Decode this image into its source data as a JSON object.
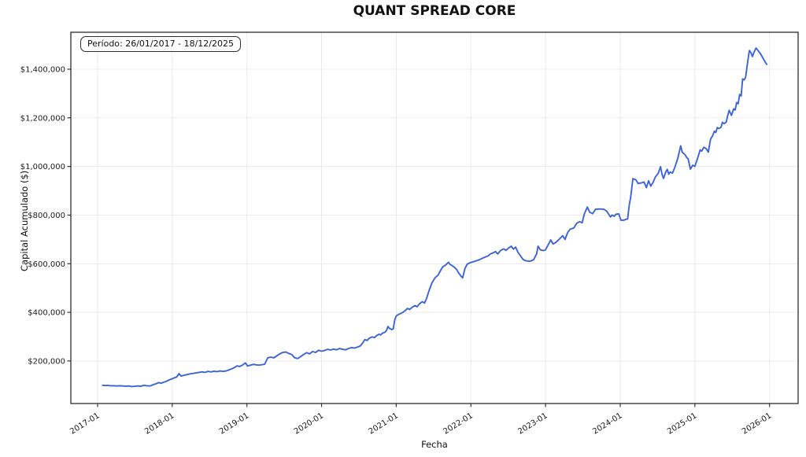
{
  "chart_data": {
    "type": "line",
    "title": "QUANT SPREAD CORE",
    "xlabel": "Fecha",
    "ylabel": "Capital Acumulado ($)",
    "annotation": "Período: 26/01/2017 - 18/12/2025",
    "grid": true,
    "legend": "none",
    "line_color": "#3d63db",
    "grid_color": "#e9e9e9",
    "spine_color": "#3a3a3a",
    "xlim": [
      2016.642,
      2026.383
    ],
    "ylim": [
      25000,
      1552000
    ],
    "x_ticks": [
      {
        "v": 2017,
        "label": "2017-01"
      },
      {
        "v": 2018,
        "label": "2018-01"
      },
      {
        "v": 2019,
        "label": "2019-01"
      },
      {
        "v": 2020,
        "label": "2020-01"
      },
      {
        "v": 2021,
        "label": "2021-01"
      },
      {
        "v": 2022,
        "label": "2022-01"
      },
      {
        "v": 2023,
        "label": "2023-01"
      },
      {
        "v": 2024,
        "label": "2024-01"
      },
      {
        "v": 2025,
        "label": "2025-01"
      },
      {
        "v": 2026,
        "label": "2026-01"
      }
    ],
    "y_ticks": [
      {
        "v": 200000,
        "label": "$200,000"
      },
      {
        "v": 400000,
        "label": "$400,000"
      },
      {
        "v": 600000,
        "label": "$600,000"
      },
      {
        "v": 800000,
        "label": "$800,000"
      },
      {
        "v": 1000000,
        "label": "$1,000,000"
      },
      {
        "v": 1200000,
        "label": "$1,200,000"
      },
      {
        "v": 1400000,
        "label": "$1,400,000"
      }
    ],
    "series": [
      {
        "name": "Capital Acumulado",
        "points": [
          [
            2017.068,
            100000
          ],
          [
            2017.1,
            99000
          ],
          [
            2017.14,
            99000
          ],
          [
            2017.18,
            98000
          ],
          [
            2017.22,
            98000
          ],
          [
            2017.26,
            97000
          ],
          [
            2017.3,
            98000
          ],
          [
            2017.34,
            97000
          ],
          [
            2017.38,
            96000
          ],
          [
            2017.42,
            97000
          ],
          [
            2017.46,
            95000
          ],
          [
            2017.5,
            96000
          ],
          [
            2017.54,
            97000
          ],
          [
            2017.58,
            96000
          ],
          [
            2017.62,
            100000
          ],
          [
            2017.66,
            98000
          ],
          [
            2017.7,
            97000
          ],
          [
            2017.74,
            102000
          ],
          [
            2017.78,
            106000
          ],
          [
            2017.82,
            111000
          ],
          [
            2017.85,
            108000
          ],
          [
            2017.88,
            112000
          ],
          [
            2017.92,
            116000
          ],
          [
            2017.96,
            122000
          ],
          [
            2018.0,
            127000
          ],
          [
            2018.03,
            131000
          ],
          [
            2018.06,
            134000
          ],
          [
            2018.09,
            148000
          ],
          [
            2018.12,
            138000
          ],
          [
            2018.16,
            141000
          ],
          [
            2018.2,
            144000
          ],
          [
            2018.24,
            147000
          ],
          [
            2018.28,
            149000
          ],
          [
            2018.32,
            151000
          ],
          [
            2018.36,
            153000
          ],
          [
            2018.4,
            155000
          ],
          [
            2018.44,
            153000
          ],
          [
            2018.48,
            157000
          ],
          [
            2018.52,
            155000
          ],
          [
            2018.56,
            158000
          ],
          [
            2018.6,
            156000
          ],
          [
            2018.64,
            159000
          ],
          [
            2018.68,
            157000
          ],
          [
            2018.72,
            159000
          ],
          [
            2018.76,
            163000
          ],
          [
            2018.8,
            168000
          ],
          [
            2018.84,
            174000
          ],
          [
            2018.87,
            180000
          ],
          [
            2018.9,
            177000
          ],
          [
            2018.94,
            183000
          ],
          [
            2018.98,
            192000
          ],
          [
            2019.01,
            179000
          ],
          [
            2019.05,
            183000
          ],
          [
            2019.09,
            186000
          ],
          [
            2019.13,
            184000
          ],
          [
            2019.17,
            183000
          ],
          [
            2019.21,
            185000
          ],
          [
            2019.24,
            187000
          ],
          [
            2019.28,
            213000
          ],
          [
            2019.32,
            216000
          ],
          [
            2019.36,
            213000
          ],
          [
            2019.4,
            221000
          ],
          [
            2019.44,
            229000
          ],
          [
            2019.48,
            235000
          ],
          [
            2019.52,
            237000
          ],
          [
            2019.56,
            231000
          ],
          [
            2019.6,
            227000
          ],
          [
            2019.64,
            213000
          ],
          [
            2019.68,
            210000
          ],
          [
            2019.72,
            218000
          ],
          [
            2019.76,
            227000
          ],
          [
            2019.8,
            234000
          ],
          [
            2019.84,
            229000
          ],
          [
            2019.88,
            239000
          ],
          [
            2019.92,
            235000
          ],
          [
            2019.96,
            244000
          ],
          [
            2020.0,
            240000
          ],
          [
            2020.04,
            243000
          ],
          [
            2020.08,
            248000
          ],
          [
            2020.12,
            245000
          ],
          [
            2020.16,
            249000
          ],
          [
            2020.2,
            246000
          ],
          [
            2020.24,
            251000
          ],
          [
            2020.28,
            248000
          ],
          [
            2020.32,
            246000
          ],
          [
            2020.36,
            251000
          ],
          [
            2020.4,
            255000
          ],
          [
            2020.44,
            253000
          ],
          [
            2020.48,
            257000
          ],
          [
            2020.52,
            262000
          ],
          [
            2020.56,
            278000
          ],
          [
            2020.58,
            288000
          ],
          [
            2020.61,
            284000
          ],
          [
            2020.64,
            294000
          ],
          [
            2020.68,
            299000
          ],
          [
            2020.71,
            296000
          ],
          [
            2020.74,
            305000
          ],
          [
            2020.77,
            310000
          ],
          [
            2020.79,
            307000
          ],
          [
            2020.82,
            315000
          ],
          [
            2020.85,
            318000
          ],
          [
            2020.87,
            326000
          ],
          [
            2020.89,
            342000
          ],
          [
            2020.91,
            334000
          ],
          [
            2020.94,
            329000
          ],
          [
            2020.96,
            332000
          ],
          [
            2020.98,
            369000
          ],
          [
            2021.0,
            385000
          ],
          [
            2021.03,
            391000
          ],
          [
            2021.06,
            395000
          ],
          [
            2021.09,
            400000
          ],
          [
            2021.12,
            407000
          ],
          [
            2021.15,
            416000
          ],
          [
            2021.18,
            412000
          ],
          [
            2021.21,
            420000
          ],
          [
            2021.25,
            428000
          ],
          [
            2021.28,
            423000
          ],
          [
            2021.31,
            435000
          ],
          [
            2021.35,
            444000
          ],
          [
            2021.38,
            438000
          ],
          [
            2021.41,
            460000
          ],
          [
            2021.44,
            490000
          ],
          [
            2021.48,
            522000
          ],
          [
            2021.52,
            542000
          ],
          [
            2021.56,
            553000
          ],
          [
            2021.59,
            570000
          ],
          [
            2021.62,
            586000
          ],
          [
            2021.66,
            594000
          ],
          [
            2021.7,
            606000
          ],
          [
            2021.72,
            597000
          ],
          [
            2021.75,
            592000
          ],
          [
            2021.78,
            585000
          ],
          [
            2021.81,
            576000
          ],
          [
            2021.84,
            560000
          ],
          [
            2021.87,
            548000
          ],
          [
            2021.89,
            542000
          ],
          [
            2021.92,
            580000
          ],
          [
            2021.95,
            598000
          ],
          [
            2021.99,
            604000
          ],
          [
            2022.03,
            608000
          ],
          [
            2022.07,
            612000
          ],
          [
            2022.11,
            616000
          ],
          [
            2022.15,
            622000
          ],
          [
            2022.19,
            627000
          ],
          [
            2022.23,
            632000
          ],
          [
            2022.26,
            640000
          ],
          [
            2022.3,
            645000
          ],
          [
            2022.33,
            650000
          ],
          [
            2022.36,
            640000
          ],
          [
            2022.4,
            655000
          ],
          [
            2022.44,
            661000
          ],
          [
            2022.47,
            655000
          ],
          [
            2022.51,
            666000
          ],
          [
            2022.54,
            672000
          ],
          [
            2022.57,
            660000
          ],
          [
            2022.6,
            668000
          ],
          [
            2022.63,
            647000
          ],
          [
            2022.67,
            630000
          ],
          [
            2022.7,
            617000
          ],
          [
            2022.74,
            612000
          ],
          [
            2022.79,
            610000
          ],
          [
            2022.84,
            616000
          ],
          [
            2022.88,
            640000
          ],
          [
            2022.9,
            672000
          ],
          [
            2022.93,
            657000
          ],
          [
            2022.97,
            654000
          ],
          [
            2023.0,
            657000
          ],
          [
            2023.05,
            686000
          ],
          [
            2023.07,
            698000
          ],
          [
            2023.1,
            681000
          ],
          [
            2023.14,
            688000
          ],
          [
            2023.19,
            703000
          ],
          [
            2023.23,
            715000
          ],
          [
            2023.26,
            700000
          ],
          [
            2023.3,
            731000
          ],
          [
            2023.33,
            742000
          ],
          [
            2023.38,
            747000
          ],
          [
            2023.42,
            767000
          ],
          [
            2023.46,
            773000
          ],
          [
            2023.49,
            768000
          ],
          [
            2023.52,
            805000
          ],
          [
            2023.56,
            833000
          ],
          [
            2023.59,
            812000
          ],
          [
            2023.63,
            806000
          ],
          [
            2023.67,
            824000
          ],
          [
            2023.72,
            825000
          ],
          [
            2023.78,
            824000
          ],
          [
            2023.82,
            816000
          ],
          [
            2023.84,
            806000
          ],
          [
            2023.87,
            792000
          ],
          [
            2023.89,
            800000
          ],
          [
            2023.92,
            795000
          ],
          [
            2023.94,
            803000
          ],
          [
            2023.98,
            805000
          ],
          [
            2024.01,
            779000
          ],
          [
            2024.05,
            779000
          ],
          [
            2024.08,
            783000
          ],
          [
            2024.1,
            784000
          ],
          [
            2024.12,
            838000
          ],
          [
            2024.14,
            872000
          ],
          [
            2024.17,
            950000
          ],
          [
            2024.21,
            945000
          ],
          [
            2024.24,
            930000
          ],
          [
            2024.28,
            932000
          ],
          [
            2024.32,
            936000
          ],
          [
            2024.35,
            913000
          ],
          [
            2024.38,
            941000
          ],
          [
            2024.41,
            919000
          ],
          [
            2024.44,
            935000
          ],
          [
            2024.47,
            956000
          ],
          [
            2024.51,
            972000
          ],
          [
            2024.54,
            999000
          ],
          [
            2024.56,
            968000
          ],
          [
            2024.58,
            951000
          ],
          [
            2024.61,
            977000
          ],
          [
            2024.63,
            988000
          ],
          [
            2024.65,
            968000
          ],
          [
            2024.67,
            977000
          ],
          [
            2024.7,
            973000
          ],
          [
            2024.73,
            995000
          ],
          [
            2024.77,
            1032000
          ],
          [
            2024.81,
            1085000
          ],
          [
            2024.83,
            1059000
          ],
          [
            2024.85,
            1053000
          ],
          [
            2024.87,
            1048000
          ],
          [
            2024.89,
            1037000
          ],
          [
            2024.91,
            1031000
          ],
          [
            2024.94,
            989000
          ],
          [
            2024.97,
            1005000
          ],
          [
            2025.0,
            1000000
          ],
          [
            2025.04,
            1037000
          ],
          [
            2025.07,
            1068000
          ],
          [
            2025.09,
            1063000
          ],
          [
            2025.12,
            1079000
          ],
          [
            2025.15,
            1074000
          ],
          [
            2025.18,
            1059000
          ],
          [
            2025.21,
            1112000
          ],
          [
            2025.24,
            1128000
          ],
          [
            2025.26,
            1145000
          ],
          [
            2025.28,
            1140000
          ],
          [
            2025.3,
            1160000
          ],
          [
            2025.32,
            1156000
          ],
          [
            2025.35,
            1161000
          ],
          [
            2025.37,
            1182000
          ],
          [
            2025.39,
            1176000
          ],
          [
            2025.42,
            1183000
          ],
          [
            2025.44,
            1210000
          ],
          [
            2025.46,
            1231000
          ],
          [
            2025.49,
            1210000
          ],
          [
            2025.52,
            1237000
          ],
          [
            2025.54,
            1232000
          ],
          [
            2025.56,
            1263000
          ],
          [
            2025.58,
            1258000
          ],
          [
            2025.6,
            1296000
          ],
          [
            2025.62,
            1290000
          ],
          [
            2025.64,
            1360000
          ],
          [
            2025.66,
            1356000
          ],
          [
            2025.68,
            1367000
          ],
          [
            2025.7,
            1414000
          ],
          [
            2025.72,
            1457000
          ],
          [
            2025.73,
            1477000
          ],
          [
            2025.75,
            1468000
          ],
          [
            2025.77,
            1452000
          ],
          [
            2025.79,
            1468000
          ],
          [
            2025.82,
            1487000
          ],
          [
            2025.84,
            1479000
          ],
          [
            2025.88,
            1463000
          ],
          [
            2025.91,
            1447000
          ],
          [
            2025.94,
            1430000
          ],
          [
            2025.962,
            1420000
          ]
        ]
      }
    ]
  }
}
